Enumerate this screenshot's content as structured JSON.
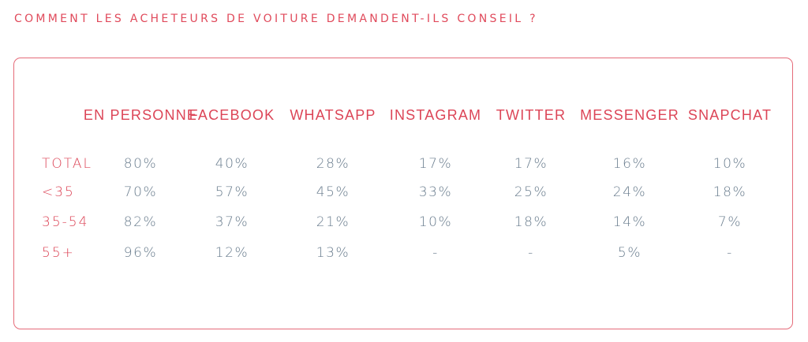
{
  "title": "COMMENT LES ACHETEURS DE VOITURE DEMANDENT-ILS CONSEIL ?",
  "colors": {
    "accent": "#dc4557",
    "values": "#6a7d8e",
    "border": "#e56b79",
    "background": "#ffffff"
  },
  "chart_data": {
    "type": "table",
    "title": "COMMENT LES ACHETEURS DE VOITURE DEMANDENT-ILS CONSEIL ?",
    "columns": [
      "EN PERSONNE",
      "FACEBOOK",
      "WHATSAPP",
      "INSTAGRAM",
      "TWITTER",
      "MESSENGER",
      "SNAPCHAT"
    ],
    "rows": [
      {
        "label": "TOTAL",
        "values": [
          "80%",
          "40%",
          "28%",
          "17%",
          "17%",
          "16%",
          "10%"
        ]
      },
      {
        "label": "<35",
        "values": [
          "70%",
          "57%",
          "45%",
          "33%",
          "25%",
          "24%",
          "18%"
        ]
      },
      {
        "label": "35-54",
        "values": [
          "82%",
          "37%",
          "21%",
          "10%",
          "18%",
          "14%",
          "7%"
        ]
      },
      {
        "label": "55+",
        "values": [
          "96%",
          "12%",
          "13%",
          "-",
          "-",
          "5%",
          "-"
        ]
      }
    ]
  }
}
